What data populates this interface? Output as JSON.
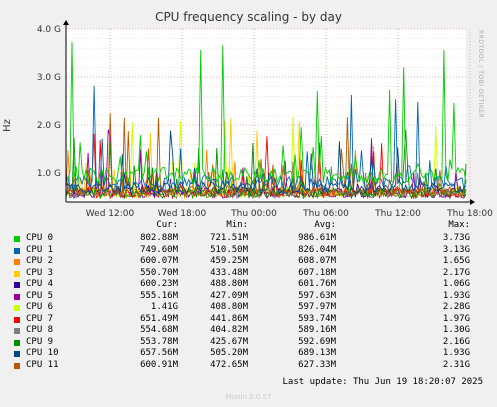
{
  "chart_data": {
    "type": "line",
    "title": "CPU frequency scaling - by day",
    "ylabel": "Hz",
    "side_text": "RRDTOOL / TOBI OETIKER",
    "yticks": [
      "4.0 G",
      "3.0 G",
      "2.0 G",
      "1.0 G"
    ],
    "ytick_values": [
      4000000000,
      3000000000,
      2000000000,
      1000000000
    ],
    "ylim": [
      400000000,
      4000000000
    ],
    "xticks": [
      "Wed 12:00",
      "Wed 18:00",
      "Thu 00:00",
      "Thu 06:00",
      "Thu 12:00",
      "Thu 18:00"
    ],
    "grid": true,
    "legend_headers": [
      "Cur:",
      "Min:",
      "Avg:",
      "Max:"
    ],
    "series": [
      {
        "name": "CPU 0",
        "color": "#00cc00",
        "cur": "802.88M",
        "min": "721.51M",
        "avg": "986.61M",
        "max": "3.73G",
        "base": 0.95,
        "spike": 3.73
      },
      {
        "name": "CPU 1",
        "color": "#0066b3",
        "cur": "749.60M",
        "min": "510.50M",
        "avg": "826.04M",
        "max": "3.13G",
        "base": 0.8,
        "spike": 3.13
      },
      {
        "name": "CPU 2",
        "color": "#ff8000",
        "cur": "600.07M",
        "min": "459.25M",
        "avg": "608.07M",
        "max": "1.65G",
        "base": 0.6,
        "spike": 1.65
      },
      {
        "name": "CPU 3",
        "color": "#ffcc00",
        "cur": "550.70M",
        "min": "433.48M",
        "avg": "607.18M",
        "max": "2.17G",
        "base": 0.6,
        "spike": 2.17
      },
      {
        "name": "CPU 4",
        "color": "#330099",
        "cur": "600.23M",
        "min": "488.80M",
        "avg": "601.76M",
        "max": "1.06G",
        "base": 0.6,
        "spike": 1.06
      },
      {
        "name": "CPU 5",
        "color": "#990099",
        "cur": "555.16M",
        "min": "427.09M",
        "avg": "597.63M",
        "max": "1.93G",
        "base": 0.58,
        "spike": 1.93
      },
      {
        "name": "CPU 6",
        "color": "#ccff00",
        "cur": "1.41G",
        "min": "408.80M",
        "avg": "597.97M",
        "max": "2.28G",
        "base": 0.6,
        "spike": 2.28
      },
      {
        "name": "CPU 7",
        "color": "#ff0000",
        "cur": "651.49M",
        "min": "441.86M",
        "avg": "593.74M",
        "max": "1.97G",
        "base": 0.58,
        "spike": 1.97
      },
      {
        "name": "CPU 8",
        "color": "#808080",
        "cur": "554.68M",
        "min": "404.82M",
        "avg": "589.16M",
        "max": "1.30G",
        "base": 0.58,
        "spike": 1.3
      },
      {
        "name": "CPU 9",
        "color": "#008f00",
        "cur": "553.78M",
        "min": "425.67M",
        "avg": "592.69M",
        "max": "2.16G",
        "base": 0.58,
        "spike": 2.16
      },
      {
        "name": "CPU 10",
        "color": "#00487d",
        "cur": "657.56M",
        "min": "505.20M",
        "avg": "689.13M",
        "max": "1.93G",
        "base": 0.7,
        "spike": 1.93
      },
      {
        "name": "CPU 11",
        "color": "#b35a00",
        "cur": "600.91M",
        "min": "472.65M",
        "avg": "627.33M",
        "max": "2.31G",
        "base": 0.62,
        "spike": 2.31
      }
    ]
  },
  "last_update": "Last update: Thu Jun 19 18:20:07 2025",
  "footer": "Munin 2.0.57"
}
